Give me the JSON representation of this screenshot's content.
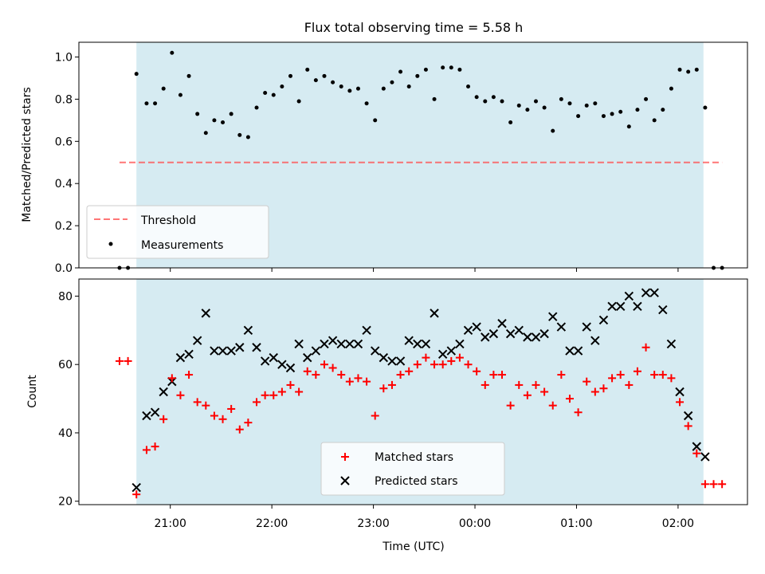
{
  "title": "Flux total observing time = 5.58 h",
  "xlabel": "Time (UTC)",
  "x_ticks": [
    "21:00",
    "22:00",
    "23:00",
    "00:00",
    "01:00",
    "02:00"
  ],
  "colors": {
    "observing_span": "#add8e6",
    "measurements": "#000000",
    "threshold": "#ff5555",
    "matched": "#ff0000",
    "predicted": "#000000"
  },
  "chart_data": [
    {
      "type": "scatter",
      "ylabel": "Matched/Predicted stars",
      "ylim": [
        0.0,
        1.07
      ],
      "y_ticks": [
        "0.0",
        "0.2",
        "0.4",
        "0.6",
        "0.8",
        "1.0"
      ],
      "observing_span": [
        "20:40",
        "02:15"
      ],
      "threshold": {
        "name": "Threshold",
        "value": 0.5,
        "style": "dashed"
      },
      "legend": {
        "placement": "lower-left",
        "entries": [
          "Threshold",
          "Measurements"
        ]
      },
      "series": [
        {
          "name": "Measurements",
          "x": [
            "20:30",
            "20:35",
            "20:40",
            "20:46",
            "20:51",
            "20:56",
            "21:01",
            "21:06",
            "21:11",
            "21:16",
            "21:21",
            "21:26",
            "21:31",
            "21:36",
            "21:41",
            "21:46",
            "21:51",
            "21:56",
            "22:01",
            "22:06",
            "22:11",
            "22:16",
            "22:21",
            "22:26",
            "22:31",
            "22:36",
            "22:41",
            "22:46",
            "22:51",
            "22:56",
            "23:01",
            "23:06",
            "23:11",
            "23:16",
            "23:21",
            "23:26",
            "23:31",
            "23:36",
            "23:41",
            "23:46",
            "23:51",
            "23:56",
            "00:01",
            "00:06",
            "00:11",
            "00:16",
            "00:21",
            "00:26",
            "00:31",
            "00:36",
            "00:41",
            "00:46",
            "00:51",
            "00:56",
            "01:01",
            "01:06",
            "01:11",
            "01:16",
            "01:21",
            "01:26",
            "01:31",
            "01:36",
            "01:41",
            "01:46",
            "01:51",
            "01:56",
            "02:01",
            "02:06",
            "02:11",
            "02:16",
            "02:21",
            "02:26"
          ],
          "y": [
            0.0,
            0.0,
            0.92,
            0.78,
            0.78,
            0.85,
            1.02,
            0.82,
            0.91,
            0.73,
            0.64,
            0.7,
            0.69,
            0.73,
            0.63,
            0.62,
            0.76,
            0.83,
            0.82,
            0.86,
            0.91,
            0.79,
            0.94,
            0.89,
            0.91,
            0.88,
            0.86,
            0.84,
            0.85,
            0.78,
            0.7,
            0.85,
            0.88,
            0.93,
            0.86,
            0.91,
            0.94,
            0.8,
            0.95,
            0.95,
            0.94,
            0.86,
            0.81,
            0.79,
            0.81,
            0.79,
            0.69,
            0.77,
            0.75,
            0.79,
            0.76,
            0.65,
            0.8,
            0.78,
            0.72,
            0.77,
            0.78,
            0.72,
            0.73,
            0.74,
            0.67,
            0.75,
            0.8,
            0.7,
            0.75,
            0.85,
            0.94,
            0.93,
            0.94,
            0.76,
            0.0,
            0.0
          ]
        }
      ]
    },
    {
      "type": "scatter",
      "ylabel": "Count",
      "ylim": [
        19,
        85
      ],
      "y_ticks": [
        "20",
        "40",
        "60",
        "80"
      ],
      "observing_span": [
        "20:40",
        "02:15"
      ],
      "legend": {
        "placement": "lower-center",
        "entries": [
          "Matched stars",
          "Predicted stars"
        ]
      },
      "x": [
        "20:30",
        "20:35",
        "20:40",
        "20:46",
        "20:51",
        "20:56",
        "21:01",
        "21:06",
        "21:11",
        "21:16",
        "21:21",
        "21:26",
        "21:31",
        "21:36",
        "21:41",
        "21:46",
        "21:51",
        "21:56",
        "22:01",
        "22:06",
        "22:11",
        "22:16",
        "22:21",
        "22:26",
        "22:31",
        "22:36",
        "22:41",
        "22:46",
        "22:51",
        "22:56",
        "23:01",
        "23:06",
        "23:11",
        "23:16",
        "23:21",
        "23:26",
        "23:31",
        "23:36",
        "23:41",
        "23:46",
        "23:51",
        "23:56",
        "00:01",
        "00:06",
        "00:11",
        "00:16",
        "00:21",
        "00:26",
        "00:31",
        "00:36",
        "00:41",
        "00:46",
        "00:51",
        "00:56",
        "01:01",
        "01:06",
        "01:11",
        "01:16",
        "01:21",
        "01:26",
        "01:31",
        "01:36",
        "01:41",
        "01:46",
        "01:51",
        "01:56",
        "02:01",
        "02:06",
        "02:11",
        "02:16",
        "02:21",
        "02:26"
      ],
      "series": [
        {
          "name": "Matched stars",
          "marker": "plus",
          "y": [
            61,
            61,
            22,
            35,
            36,
            44,
            56,
            51,
            57,
            49,
            48,
            45,
            44,
            47,
            41,
            43,
            49,
            51,
            51,
            52,
            54,
            52,
            58,
            57,
            60,
            59,
            57,
            55,
            56,
            55,
            45,
            53,
            54,
            57,
            58,
            60,
            62,
            60,
            60,
            61,
            62,
            60,
            58,
            54,
            57,
            57,
            48,
            54,
            51,
            54,
            52,
            48,
            57,
            50,
            46,
            55,
            52,
            53,
            56,
            57,
            54,
            58,
            65,
            57,
            57,
            56,
            49,
            42,
            34,
            25,
            25,
            25
          ]
        },
        {
          "name": "Predicted stars",
          "marker": "x",
          "y": [
            null,
            null,
            24,
            45,
            46,
            52,
            55,
            62,
            63,
            67,
            75,
            64,
            64,
            64,
            65,
            70,
            65,
            61,
            62,
            60,
            59,
            66,
            62,
            64,
            66,
            67,
            66,
            66,
            66,
            70,
            64,
            62,
            61,
            61,
            67,
            66,
            66,
            75,
            63,
            64,
            66,
            70,
            71,
            68,
            69,
            72,
            69,
            70,
            68,
            68,
            69,
            74,
            71,
            64,
            64,
            71,
            67,
            73,
            77,
            77,
            80,
            77,
            81,
            81,
            76,
            66,
            52,
            45,
            36,
            33,
            null,
            null
          ]
        }
      ]
    }
  ]
}
